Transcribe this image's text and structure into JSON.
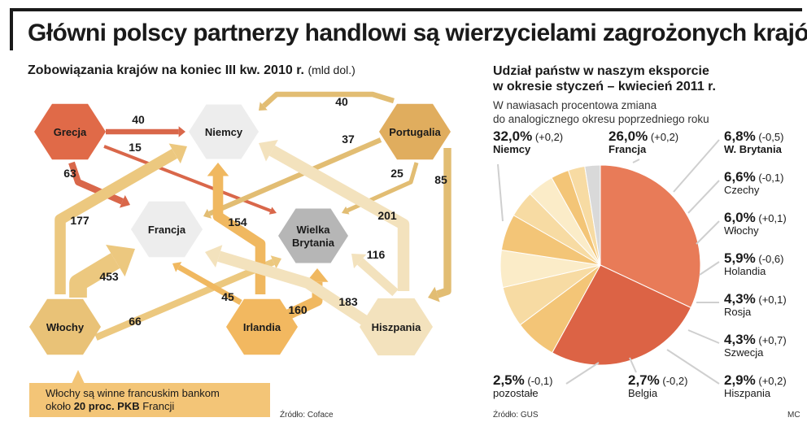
{
  "header": {
    "title": "Główni polscy partnerzy handlowi są wierzycielami zagrożonych krajów"
  },
  "left_panel": {
    "subtitle": "Zobowiązania krajów na koniec III kw. 2010 r.",
    "unit": "(mld dol.)",
    "callout_line1": "Włochy są winne francuskim bankom",
    "callout_line2_pre": "około ",
    "callout_line2_bold": "20 proc. PKB",
    "callout_line2_post": " Francji",
    "source": "Źródło: Coface"
  },
  "right_panel": {
    "subtitle_line1": "Udział państw w naszym eksporcie",
    "subtitle_line2": "w okresie styczeń – kwiecień 2011 r.",
    "note_line1": "W nawiasach procentowa zmiana",
    "note_line2": "do analogicznego okresu poprzedniego roku",
    "source": "Źródło: GUS",
    "credit": "MC"
  },
  "chart_data": [
    {
      "type": "diagram",
      "nodes": [
        {
          "id": "grecja",
          "label": "Grecja",
          "color": "#e06a48"
        },
        {
          "id": "niemcy",
          "label": "Niemcy",
          "color": "#ededed"
        },
        {
          "id": "portugalia",
          "label": "Portugalia",
          "color": "#e0ad5e"
        },
        {
          "id": "francja",
          "label": "Francja",
          "color": "#ededed"
        },
        {
          "id": "wb",
          "label": "Wielka Brytania",
          "label_line1": "Wielka",
          "label_line2": "Brytania",
          "color": "#b6b6b6"
        },
        {
          "id": "wlochy",
          "label": "Włochy",
          "color": "#e9c277"
        },
        {
          "id": "irlandia",
          "label": "Irlandia",
          "color": "#f2b860"
        },
        {
          "id": "hiszpania",
          "label": "Hiszpania",
          "color": "#f3e2bd"
        }
      ],
      "flows": [
        {
          "from": "grecja",
          "to": "niemcy",
          "value": 40
        },
        {
          "from": "grecja",
          "to": "wb",
          "value": 15
        },
        {
          "from": "grecja",
          "to": "francja",
          "value": 63
        },
        {
          "from": "portugalia",
          "to": "niemcy",
          "value": 40
        },
        {
          "from": "portugalia",
          "to": "francja",
          "value": 37
        },
        {
          "from": "portugalia",
          "to": "wb",
          "value": 25
        },
        {
          "from": "portugalia",
          "to": "hiszpania",
          "value": 85
        },
        {
          "from": "wlochy",
          "to": "niemcy",
          "value": 177
        },
        {
          "from": "wlochy",
          "to": "francja",
          "value": 453
        },
        {
          "from": "wlochy",
          "to": "wb",
          "value": 66
        },
        {
          "from": "irlandia",
          "to": "niemcy",
          "value": 154
        },
        {
          "from": "irlandia",
          "to": "francja",
          "value": 45
        },
        {
          "from": "irlandia",
          "to": "wb",
          "value": 160
        },
        {
          "from": "hiszpania",
          "to": "niemcy",
          "value": 201
        },
        {
          "from": "hiszpania",
          "to": "wb",
          "value": 116
        },
        {
          "from": "hiszpania",
          "to": "francja",
          "value": 183
        }
      ]
    },
    {
      "type": "pie",
      "slices": [
        {
          "label": "Niemcy",
          "value": 32.0,
          "pct": "32,0%",
          "change": "(+0,2)",
          "color": "#e87b58",
          "bold_name": true
        },
        {
          "label": "Francja",
          "value": 26.0,
          "pct": "26,0%",
          "change": "(+0,2)",
          "color": "#dc6345",
          "bold_name": true
        },
        {
          "label": "W. Brytania",
          "value": 6.8,
          "pct": "6,8%",
          "change": "(-0,5)",
          "color": "#f3c577",
          "bold_name": true
        },
        {
          "label": "Czechy",
          "value": 6.6,
          "pct": "6,6%",
          "change": "(-0,1)",
          "color": "#f7dba3"
        },
        {
          "label": "Włochy",
          "value": 6.0,
          "pct": "6,0%",
          "change": "(+0,1)",
          "color": "#fbecc8"
        },
        {
          "label": "Holandia",
          "value": 5.9,
          "pct": "5,9%",
          "change": "(-0,6)",
          "color": "#f3c577"
        },
        {
          "label": "Rosja",
          "value": 4.3,
          "pct": "4,3%",
          "change": "(+0,1)",
          "color": "#f7dba3"
        },
        {
          "label": "Szwecja",
          "value": 4.3,
          "pct": "4,3%",
          "change": "(+0,7)",
          "color": "#fbecc8"
        },
        {
          "label": "Hiszpania",
          "value": 2.9,
          "pct": "2,9%",
          "change": "(+0,2)",
          "color": "#f3c577"
        },
        {
          "label": "Belgia",
          "value": 2.7,
          "pct": "2,7%",
          "change": "(-0,2)",
          "color": "#f7dba3"
        },
        {
          "label": "pozostałe",
          "value": 2.5,
          "pct": "2,5%",
          "change": "(-0,1)",
          "color": "#d9d9d9"
        }
      ]
    }
  ]
}
